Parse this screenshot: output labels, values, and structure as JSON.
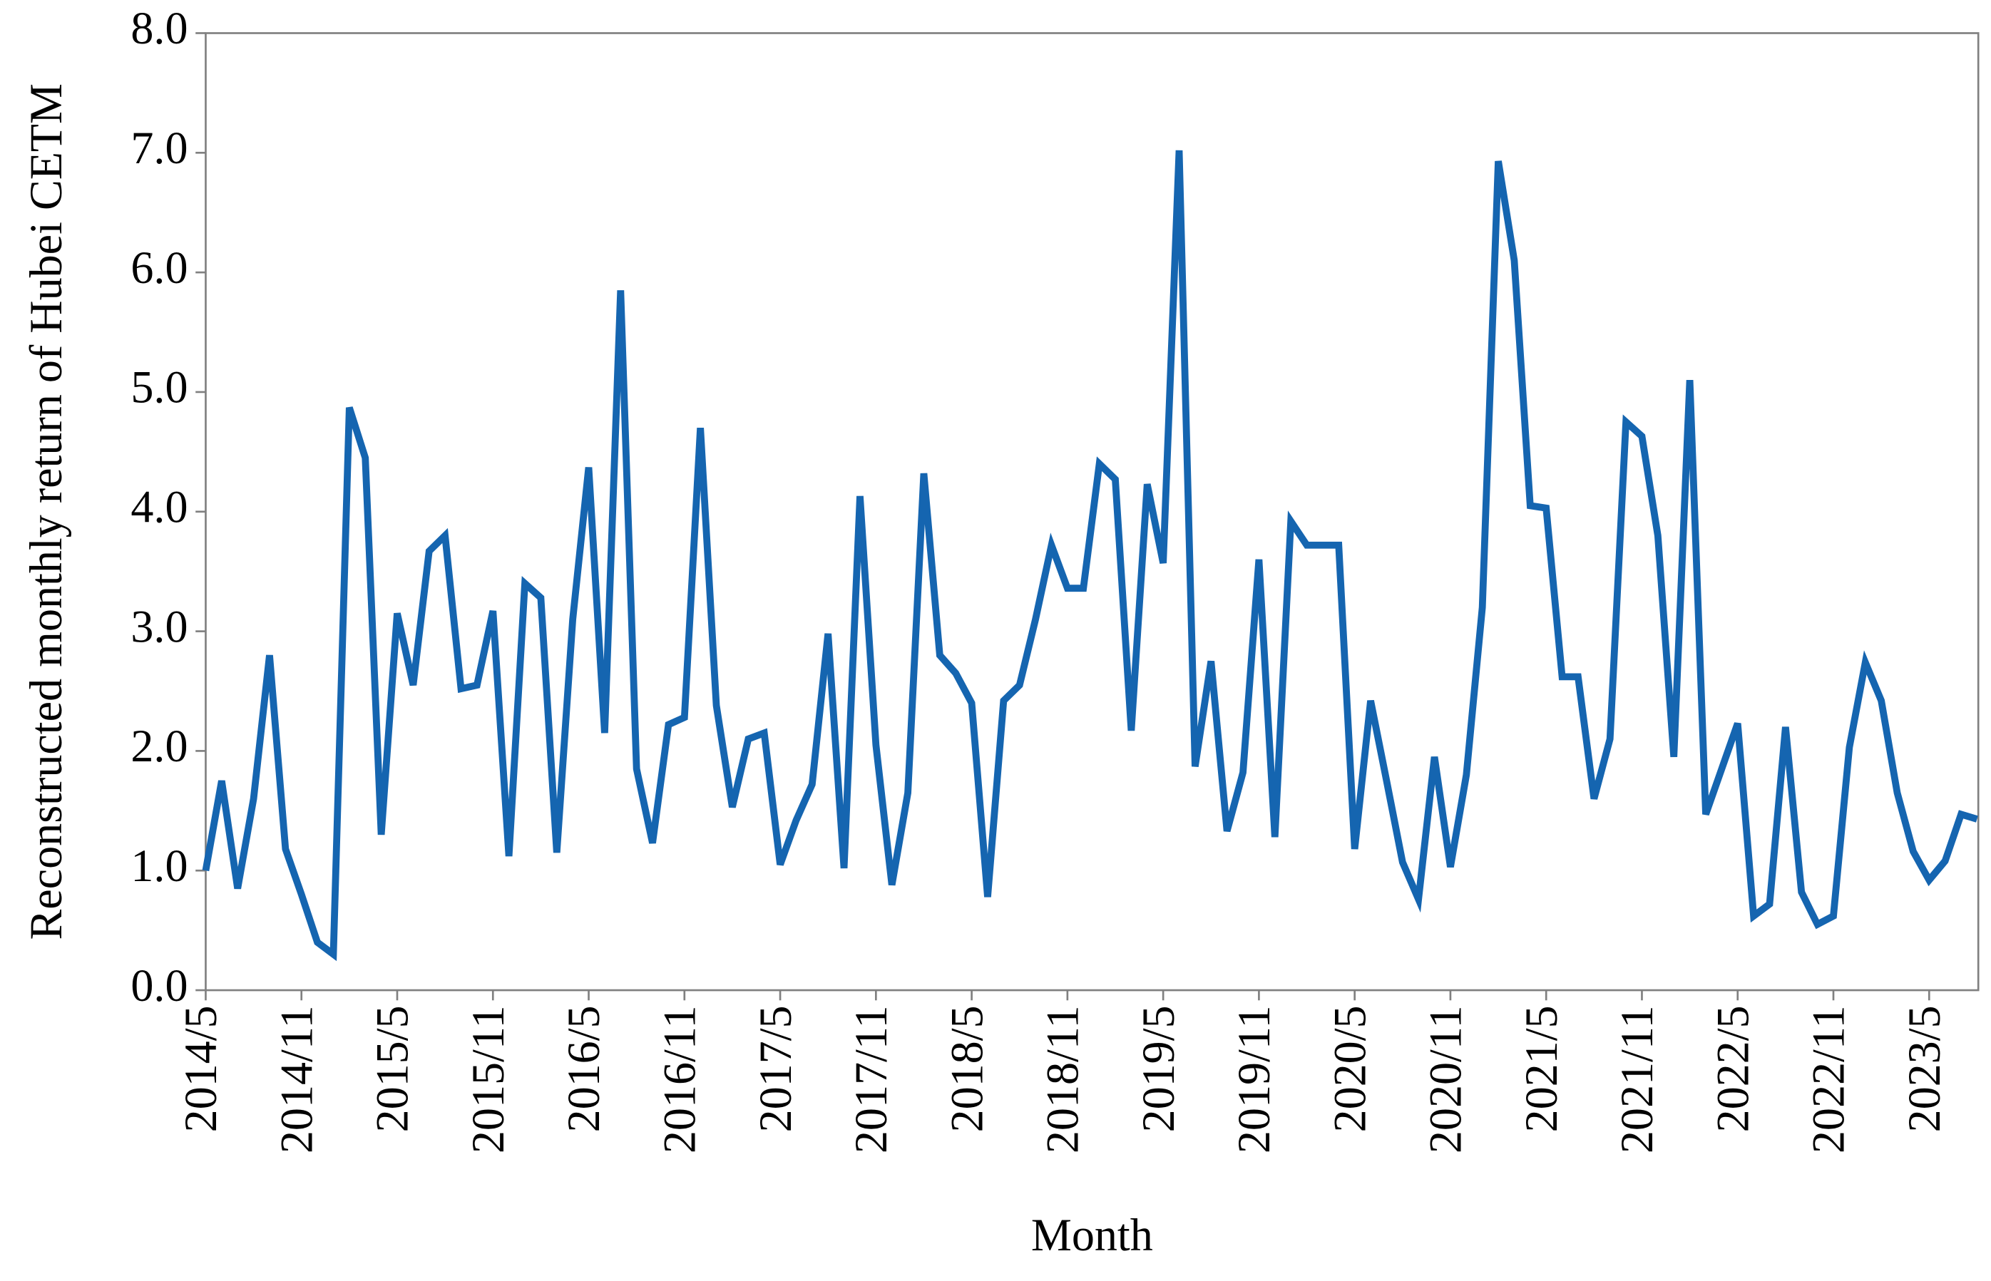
{
  "chart_data": {
    "type": "line",
    "y_label": "Reconstructed monthly return of Hubei CETM",
    "x_label": "Month",
    "categories": [
      "2014/5",
      null,
      null,
      null,
      null,
      null,
      "2014/11",
      null,
      null,
      null,
      null,
      null,
      "2015/5",
      null,
      null,
      null,
      null,
      null,
      "2015/11",
      null,
      null,
      null,
      null,
      null,
      "2016/5",
      null,
      null,
      null,
      null,
      null,
      "2016/11",
      null,
      null,
      null,
      null,
      null,
      "2017/5",
      null,
      null,
      null,
      null,
      null,
      "2017/11",
      null,
      null,
      null,
      null,
      null,
      "2018/5",
      null,
      null,
      null,
      null,
      null,
      "2018/11",
      null,
      null,
      null,
      null,
      null,
      "2019/5",
      null,
      null,
      null,
      null,
      null,
      "2019/11",
      null,
      null,
      null,
      null,
      null,
      "2020/5",
      null,
      null,
      null,
      null,
      null,
      "2020/11",
      null,
      null,
      null,
      null,
      null,
      "2021/5",
      null,
      null,
      null,
      null,
      null,
      "2021/11",
      null,
      null,
      null,
      null,
      null,
      "2022/5",
      null,
      null,
      null,
      null,
      null,
      "2022/11",
      null,
      null,
      null,
      null,
      null,
      "2023/5",
      null,
      null,
      null
    ],
    "values": [
      1.0,
      1.75,
      0.85,
      1.6,
      2.8,
      1.18,
      0.8,
      0.4,
      0.3,
      4.87,
      4.45,
      1.3,
      3.15,
      2.55,
      3.67,
      3.8,
      2.52,
      2.55,
      3.17,
      1.12,
      3.4,
      3.28,
      1.15,
      3.1,
      4.37,
      2.15,
      5.85,
      1.85,
      1.23,
      2.22,
      2.28,
      4.7,
      2.38,
      1.53,
      2.1,
      2.15,
      1.05,
      1.42,
      1.72,
      2.98,
      1.02,
      4.13,
      2.05,
      0.88,
      1.65,
      4.32,
      2.8,
      2.65,
      2.4,
      0.78,
      2.42,
      2.55,
      3.1,
      3.72,
      3.36,
      3.36,
      4.4,
      4.27,
      2.17,
      4.23,
      3.57,
      7.02,
      1.87,
      2.75,
      1.33,
      1.82,
      3.6,
      1.28,
      3.92,
      3.72,
      3.72,
      3.72,
      1.18,
      2.42,
      1.75,
      1.07,
      0.76,
      1.95,
      1.03,
      1.8,
      3.2,
      6.93,
      6.1,
      4.05,
      4.03,
      2.62,
      2.62,
      1.6,
      2.1,
      4.75,
      4.63,
      3.8,
      1.95,
      5.1,
      1.47,
      1.85,
      2.23,
      0.62,
      0.72,
      2.2,
      0.82,
      0.55,
      0.62,
      2.03,
      2.74,
      2.42,
      1.65,
      1.16,
      0.92,
      1.08,
      1.47,
      1.43
    ],
    "color": "#1565b0",
    "ylim": [
      0,
      8
    ],
    "yticks": [
      {
        "value": 0,
        "label": "0.0"
      },
      {
        "value": 1,
        "label": "1.0"
      },
      {
        "value": 2,
        "label": "2.0"
      },
      {
        "value": 3,
        "label": "3.0"
      },
      {
        "value": 4,
        "label": "4.0"
      },
      {
        "value": 5,
        "label": "5.0"
      },
      {
        "value": 6,
        "label": "6.0"
      },
      {
        "value": 7,
        "label": "7.0"
      },
      {
        "value": 8,
        "label": "8.0"
      }
    ]
  }
}
